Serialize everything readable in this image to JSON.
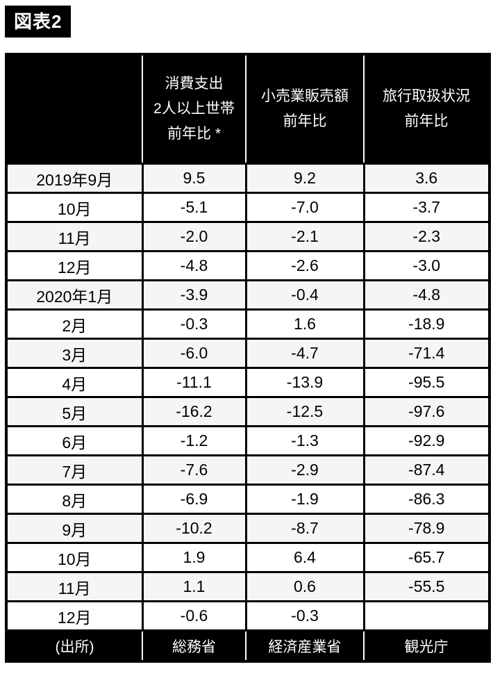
{
  "title": "図表2",
  "colors": {
    "header_bg": "#000000",
    "header_text": "#ffffff",
    "grid_border": "#000000",
    "row_alt_bg": "#f5f5f5",
    "row_bg": "#ffffff"
  },
  "chart_data": {
    "type": "table",
    "title": "図表2",
    "header": [
      {
        "lines": []
      },
      {
        "lines": [
          "消費支出",
          "2人以上世帯",
          "前年比 *"
        ]
      },
      {
        "lines": [
          "小売業販売額",
          "前年比"
        ]
      },
      {
        "lines": [
          "旅行取扱状況",
          "前年比"
        ]
      }
    ],
    "rows": [
      {
        "label": "2019年9月",
        "values": [
          "9.5",
          "9.2",
          "3.6"
        ]
      },
      {
        "label": "10月",
        "values": [
          "-5.1",
          "-7.0",
          "-3.7"
        ]
      },
      {
        "label": "11月",
        "values": [
          "-2.0",
          "-2.1",
          "-2.3"
        ]
      },
      {
        "label": "12月",
        "values": [
          "-4.8",
          "-2.6",
          "-3.0"
        ]
      },
      {
        "label": "2020年1月",
        "values": [
          "-3.9",
          "-0.4",
          "-4.8"
        ]
      },
      {
        "label": "2月",
        "values": [
          "-0.3",
          "1.6",
          "-18.9"
        ]
      },
      {
        "label": "3月",
        "values": [
          "-6.0",
          "-4.7",
          "-71.4"
        ]
      },
      {
        "label": "4月",
        "values": [
          "-11.1",
          "-13.9",
          "-95.5"
        ]
      },
      {
        "label": "5月",
        "values": [
          "-16.2",
          "-12.5",
          "-97.6"
        ]
      },
      {
        "label": "6月",
        "values": [
          "-1.2",
          "-1.3",
          "-92.9"
        ]
      },
      {
        "label": "7月",
        "values": [
          "-7.6",
          "-2.9",
          "-87.4"
        ]
      },
      {
        "label": "8月",
        "values": [
          "-6.9",
          "-1.9",
          "-86.3"
        ]
      },
      {
        "label": "9月",
        "values": [
          "-10.2",
          "-8.7",
          "-78.9"
        ]
      },
      {
        "label": "10月",
        "values": [
          "1.9",
          "6.4",
          "-65.7"
        ]
      },
      {
        "label": "11月",
        "values": [
          "1.1",
          "0.6",
          "-55.5"
        ]
      },
      {
        "label": "12月",
        "values": [
          "-0.6",
          "-0.3",
          ""
        ]
      }
    ],
    "source_row": {
      "label": "(出所)",
      "values": [
        "総務省",
        "経済産業省",
        "観光庁"
      ]
    }
  }
}
